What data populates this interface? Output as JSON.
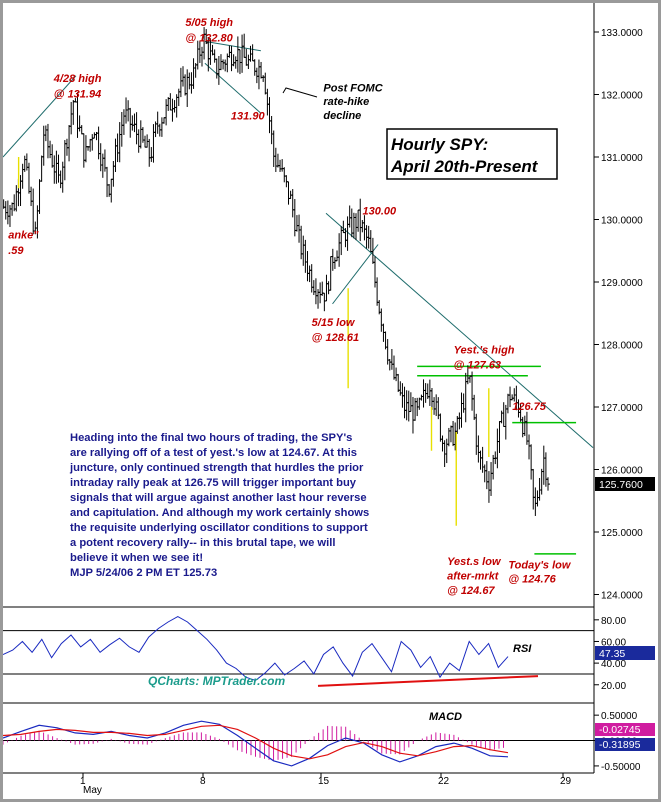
{
  "chart_data": [
    {
      "type": "candlestick",
      "panel": "price",
      "title": "Hourly SPY:",
      "subtitle": "April 20th-Present",
      "ylim": [
        123.8,
        133.4
      ],
      "yticks": [
        "133.0000",
        "132.0000",
        "131.0000",
        "130.0000",
        "129.0000",
        "128.0000",
        "127.0000",
        "126.0000",
        "125.0000",
        "124.0000"
      ],
      "last_price": "125.7600",
      "x_ticks": [
        "1",
        "8",
        "15",
        "22",
        "29"
      ],
      "x_month": "May",
      "price_path": [
        [
          -0.5,
          130.2
        ],
        [
          0.3,
          131.0
        ],
        [
          1.2,
          129.7
        ],
        [
          1.8,
          131.4
        ],
        [
          3.0,
          130.6
        ],
        [
          4.1,
          131.9
        ],
        [
          5.0,
          131.0
        ],
        [
          5.7,
          131.5
        ],
        [
          6.8,
          130.5
        ],
        [
          8.0,
          131.7
        ],
        [
          9.2,
          131.3
        ],
        [
          10.0,
          131.0
        ],
        [
          10.5,
          131.5
        ],
        [
          12.0,
          132.0
        ],
        [
          13.3,
          132.3
        ],
        [
          14.1,
          132.9
        ],
        [
          15.0,
          132.4
        ],
        [
          16.5,
          132.7
        ],
        [
          17.6,
          132.5
        ],
        [
          18.7,
          132.4
        ],
        [
          19.5,
          131.0
        ],
        [
          20.0,
          130.8
        ],
        [
          20.8,
          130.3
        ],
        [
          21.5,
          129.6
        ],
        [
          22.5,
          129.0
        ],
        [
          23.5,
          128.8
        ],
        [
          24.0,
          129.4
        ],
        [
          25.0,
          129.8
        ],
        [
          26.0,
          130.0
        ],
        [
          26.8,
          129.6
        ],
        [
          27.5,
          128.7
        ],
        [
          28.5,
          127.6
        ],
        [
          29.5,
          127.0
        ],
        [
          30.5,
          126.9
        ],
        [
          31.5,
          127.4
        ],
        [
          32.5,
          126.4
        ],
        [
          33.5,
          126.6
        ],
        [
          34.5,
          127.5
        ],
        [
          35.2,
          126.2
        ],
        [
          36.0,
          125.8
        ],
        [
          36.8,
          126.6
        ],
        [
          37.6,
          127.2
        ],
        [
          38.3,
          127.0
        ],
        [
          39.0,
          126.4
        ],
        [
          39.5,
          125.3
        ],
        [
          40.2,
          126.2
        ],
        [
          40.7,
          125.7
        ]
      ],
      "lines": [
        {
          "kind": "trendline",
          "color": "#1d6b6b",
          "points": [
            [
              -1.3,
              131.0
            ],
            [
              4.3,
              132.3
            ]
          ]
        },
        {
          "kind": "trendline",
          "color": "#1d6b6b",
          "points": [
            [
              14.2,
              132.85
            ],
            [
              18.5,
              132.7
            ]
          ]
        },
        {
          "kind": "trendline",
          "color": "#1d6b6b",
          "points": [
            [
              14.2,
              132.5
            ],
            [
              18.5,
              131.7
            ]
          ]
        },
        {
          "kind": "trendline",
          "color": "#1d6b6b",
          "points": [
            [
              24.0,
              128.65
            ],
            [
              27.5,
              129.6
            ]
          ]
        },
        {
          "kind": "trendline",
          "color": "#1d6b6b",
          "points": [
            [
              23.5,
              130.1
            ],
            [
              44.0,
              126.35
            ]
          ]
        },
        {
          "kind": "support",
          "color": "#00c000",
          "points": [
            [
              30.5,
              127.65
            ],
            [
              40.0,
              127.65
            ]
          ]
        },
        {
          "kind": "support",
          "color": "#00c000",
          "points": [
            [
              30.5,
              127.5
            ],
            [
              39.0,
              127.5
            ]
          ]
        },
        {
          "kind": "support",
          "color": "#00c000",
          "points": [
            [
              37.8,
              126.75
            ],
            [
              42.7,
              126.75
            ]
          ]
        },
        {
          "kind": "support",
          "color": "#00c000",
          "points": [
            [
              39.5,
              124.65
            ],
            [
              42.7,
              124.65
            ]
          ]
        }
      ],
      "annotations": [
        {
          "text": "5/05 high",
          "color": "red",
          "at": [
            12.7,
            133.1
          ]
        },
        {
          "text": "@ 132.80",
          "color": "red",
          "at": [
            12.7,
            132.85
          ]
        },
        {
          "text": "4/28 high",
          "color": "red",
          "at": [
            2.6,
            132.2
          ]
        },
        {
          "text": "@ 131.94",
          "color": "red",
          "at": [
            2.6,
            131.95
          ]
        },
        {
          "text": "131.90",
          "color": "red",
          "at": [
            16.2,
            131.6
          ]
        },
        {
          "text": "Post FOMC",
          "color": "black",
          "at": [
            23.3,
            132.05
          ]
        },
        {
          "text": "rate-hike",
          "color": "black",
          "at": [
            23.3,
            131.83
          ]
        },
        {
          "text": "decline",
          "color": "black",
          "at": [
            23.3,
            131.61
          ]
        },
        {
          "text": "anke\"",
          "color": "red",
          "at": [
            -0.9,
            129.7
          ]
        },
        {
          "text": ".59",
          "color": "red",
          "at": [
            -0.9,
            129.45
          ]
        },
        {
          "text": "130.00",
          "color": "red",
          "at": [
            26.3,
            130.08
          ]
        },
        {
          "text": "5/15 low",
          "color": "red",
          "at": [
            22.4,
            128.3
          ]
        },
        {
          "text": "@ 128.61",
          "color": "red",
          "at": [
            22.4,
            128.06
          ]
        },
        {
          "text": "Yest.'s high",
          "color": "red",
          "at": [
            33.3,
            127.86
          ]
        },
        {
          "text": "@ 127.63",
          "color": "red",
          "at": [
            33.3,
            127.62
          ]
        },
        {
          "text": "126.75",
          "color": "red",
          "at": [
            37.8,
            126.95
          ]
        },
        {
          "text": "Yest.s low",
          "color": "red",
          "at": [
            32.8,
            124.47
          ]
        },
        {
          "text": "after-mrkt",
          "color": "red",
          "at": [
            32.8,
            124.24
          ]
        },
        {
          "text": "@ 124.67",
          "color": "red",
          "at": [
            32.8,
            124.01
          ]
        },
        {
          "text": "Today's low",
          "color": "red",
          "at": [
            37.5,
            124.42
          ]
        },
        {
          "text": "@ 124.76",
          "color": "red",
          "at": [
            37.5,
            124.19
          ]
        }
      ],
      "note": [
        "Heading into the final two hours of trading, the SPY's",
        "are rallying off of a test of yest.'s low at 124.67. At this",
        "juncture, only continued strength that hurdles the prior",
        "intraday rally peak at 126.75 will trigger important buy",
        "signals that will argue against another last hour reverse",
        "and capitulation. And although my work certainly shows",
        "the requisite underlying oscillator conditions to support",
        "a potent recovery rally-- in this brutal tape, we will",
        "believe it when we see it!",
        "MJP  5/24/06 2 PM ET 125.73"
      ]
    },
    {
      "type": "line",
      "panel": "rsi",
      "label": "RSI",
      "ylim": [
        5,
        90
      ],
      "yticks": [
        "80.00",
        "60.00",
        "40.00",
        "20.00"
      ],
      "current": "47.35",
      "values": [
        48,
        52,
        60,
        50,
        62,
        45,
        58,
        66,
        55,
        62,
        50,
        57,
        63,
        55,
        50,
        64,
        72,
        78,
        83,
        78,
        70,
        62,
        52,
        40,
        35,
        27,
        24,
        31,
        40,
        29,
        35,
        42,
        30,
        48,
        55,
        40,
        28,
        50,
        58,
        45,
        32,
        60,
        52,
        36,
        46,
        27,
        40,
        33,
        60,
        48,
        58,
        36,
        46
      ],
      "trendline": [
        [
          0.0,
          19.0
        ],
        [
          1.0,
          28.0
        ]
      ],
      "watermark": "QCharts: MPTrader.com"
    },
    {
      "type": "line",
      "panel": "macd",
      "label": "MACD",
      "ylim": [
        -0.6,
        0.7
      ],
      "yticks": [
        "0.50000",
        "0.00000",
        "-0.50000"
      ],
      "current_values": [
        "-0.02745",
        "-0.31895"
      ],
      "macd": [
        0.05,
        0.18,
        0.3,
        0.25,
        0.15,
        0.12,
        0.18,
        0.1,
        0.05,
        0.15,
        0.3,
        0.38,
        0.32,
        0.1,
        -0.15,
        -0.4,
        -0.5,
        -0.35,
        -0.1,
        0.05,
        -0.05,
        -0.28,
        -0.42,
        -0.3,
        -0.12,
        -0.05,
        -0.15,
        -0.3,
        -0.32
      ],
      "signal": [
        0.1,
        0.12,
        0.18,
        0.22,
        0.2,
        0.16,
        0.16,
        0.14,
        0.1,
        0.12,
        0.2,
        0.28,
        0.3,
        0.22,
        0.05,
        -0.15,
        -0.3,
        -0.36,
        -0.28,
        -0.12,
        -0.04,
        -0.12,
        -0.25,
        -0.3,
        -0.22,
        -0.12,
        -0.1,
        -0.18,
        -0.24
      ]
    }
  ]
}
